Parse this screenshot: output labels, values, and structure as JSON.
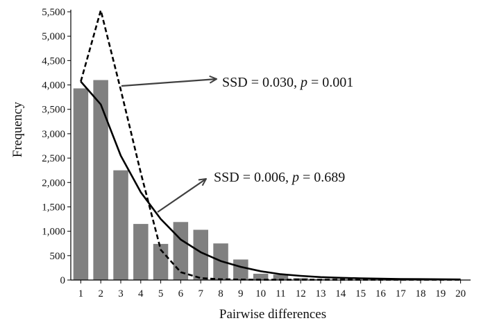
{
  "chart_data": {
    "type": "bar",
    "xlabel": "Pairwise differences",
    "ylabel": "Frequency",
    "ylim": [
      0,
      5500
    ],
    "y_ticks": [
      "0",
      "500",
      "1,000",
      "1,500",
      "2,000",
      "2,500",
      "3,000",
      "3,500",
      "4,000",
      "4,500",
      "5,000",
      "5,500"
    ],
    "categories": [
      "1",
      "2",
      "3",
      "4",
      "5",
      "6",
      "7",
      "8",
      "9",
      "10",
      "11",
      "12",
      "13",
      "14",
      "15",
      "16",
      "17",
      "18",
      "19",
      "20"
    ],
    "bars": [
      3930,
      4100,
      2250,
      1150,
      740,
      1190,
      1030,
      750,
      420,
      130,
      110,
      40,
      20,
      10,
      5,
      5,
      5,
      5,
      5,
      5
    ],
    "series": [
      {
        "values": [
          4070,
          5530,
          3900,
          2200,
          620,
          160,
          40,
          15,
          10,
          5,
          5,
          5,
          5,
          5,
          5,
          5,
          5,
          5,
          5,
          5
        ]
      },
      {
        "values": [
          4070,
          3600,
          2550,
          1800,
          1250,
          830,
          570,
          390,
          270,
          180,
          120,
          85,
          60,
          45,
          35,
          28,
          22,
          18,
          15,
          12
        ]
      }
    ],
    "annotations": [
      {
        "prefix": "SSD = 0.030, ",
        "italic": "p",
        "suffix": " = 0.001"
      },
      {
        "prefix": "SSD = 0.006, ",
        "italic": "p",
        "suffix": " = 0.689"
      }
    ],
    "colors": {
      "bar": "#808080",
      "axis": "#000000",
      "line": "#000000",
      "arrow": "#404040"
    },
    "grid": false,
    "legend": "none"
  }
}
